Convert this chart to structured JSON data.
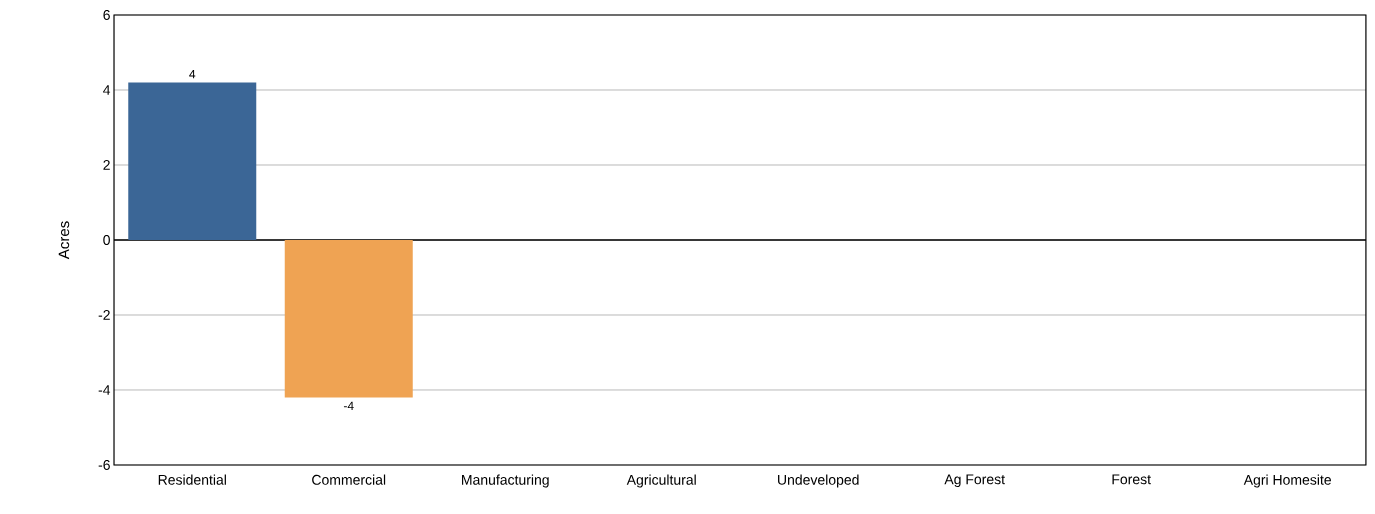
{
  "chart_data": {
    "type": "bar",
    "ylabel": "Acres",
    "categories": [
      "Residential",
      "Commercial",
      "Manufacturing",
      "Agricultural",
      "Undeveloped",
      "Ag Forest",
      "Forest",
      "Agri Homesite"
    ],
    "values": [
      4.2,
      -4.2,
      0,
      0,
      0,
      0,
      0,
      0
    ],
    "value_labels": [
      "4",
      "-4",
      null,
      null,
      null,
      null,
      null,
      null
    ],
    "colors": [
      "#3b6696",
      "#efa353",
      "#3b6696",
      "#3b6696",
      "#3b6696",
      "#3b6696",
      "#3b6696",
      "#3b6696"
    ],
    "ylim": [
      -6,
      6
    ],
    "yticks": [
      -6,
      -4,
      -2,
      0,
      2,
      4,
      6
    ],
    "grid": "y"
  }
}
